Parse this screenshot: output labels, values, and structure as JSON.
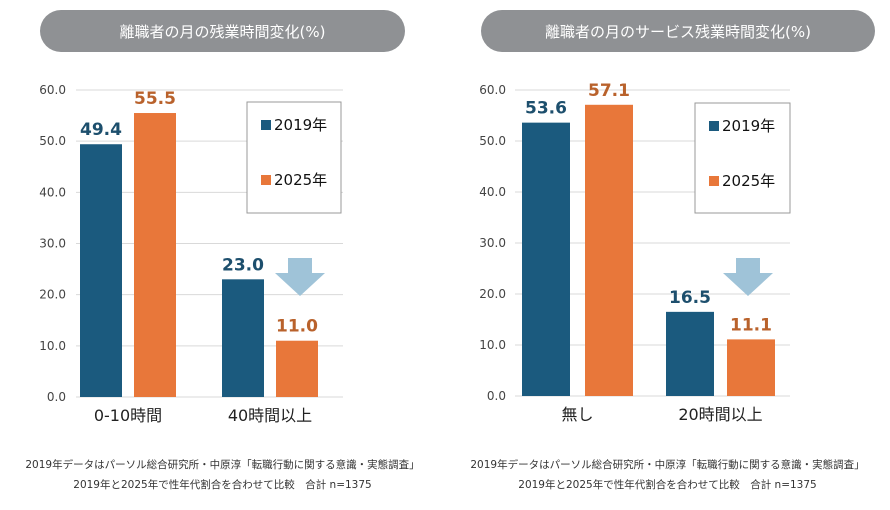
{
  "colors": {
    "y2019": "#1b5a7e",
    "y2025": "#e8773a",
    "label2019": "#1d4f6d",
    "label2025": "#b9622c",
    "arrow": "#9fc3d8",
    "pill": "#8f9194",
    "grid": "#d9d9d9"
  },
  "notes": {
    "line1": "2019年データはパーソル総合研究所・中原淳「転職行動に関する意識・実態調査」",
    "line2": "2019年と2025年で性年代割合を合わせて比較　合計 n=1375"
  },
  "chart_data": [
    {
      "type": "bar",
      "title": "離職者の月の残業時間変化(%)",
      "categories": [
        "0-10時間",
        "40時間以上"
      ],
      "series": [
        {
          "name": "2019年",
          "values": [
            49.4,
            23.0
          ]
        },
        {
          "name": "2025年",
          "values": [
            55.5,
            11.0
          ]
        }
      ],
      "value_labels": [
        [
          "49.4",
          "23.0"
        ],
        [
          "55.5",
          "11.0"
        ]
      ],
      "yticks": [
        "0.0",
        "10.0",
        "20.0",
        "30.0",
        "40.0",
        "50.0",
        "60.0"
      ],
      "ylim": [
        0,
        60
      ],
      "grid": true,
      "legend": "top-right",
      "annotation": "down-arrow-icon over second category"
    },
    {
      "type": "bar",
      "title": "離職者の月のサービス残業時間変化(%)",
      "categories": [
        "無し",
        "20時間以上"
      ],
      "series": [
        {
          "name": "2019年",
          "values": [
            53.6,
            16.5
          ]
        },
        {
          "name": "2025年",
          "values": [
            57.1,
            11.1
          ]
        }
      ],
      "value_labels": [
        [
          "53.6",
          "16.5"
        ],
        [
          "57.1",
          "11.1"
        ]
      ],
      "yticks": [
        "0.0",
        "10.0",
        "20.0",
        "30.0",
        "40.0",
        "50.0",
        "60.0"
      ],
      "ylim": [
        0,
        60
      ],
      "grid": true,
      "legend": "top-right",
      "annotation": "down-arrow-icon over second category"
    }
  ]
}
